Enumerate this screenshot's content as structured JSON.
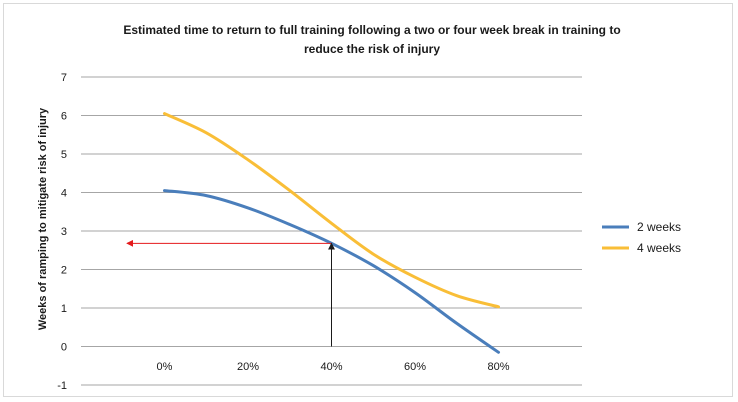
{
  "chart_data": {
    "type": "line",
    "title_lines": [
      "Estimated time to return to full training following a two or four week break in training to",
      "reduce the risk of injury"
    ],
    "xlabel": "",
    "ylabel": "Weeks of ramping to mitigate risk of injury",
    "x": [
      0,
      20,
      40,
      60,
      80
    ],
    "x_tick_labels": [
      "0%",
      "20%",
      "40%",
      "60%",
      "80%"
    ],
    "ylim": [
      -1,
      7
    ],
    "y_ticks": [
      -1,
      0,
      1,
      2,
      3,
      4,
      5,
      6,
      7
    ],
    "grid": true,
    "legend_position": "right",
    "series": [
      {
        "name": "2 weeks",
        "color": "#4a7ebb",
        "points": [
          [
            0,
            4.05
          ],
          [
            10,
            3.92
          ],
          [
            20,
            3.6
          ],
          [
            30,
            3.17
          ],
          [
            40,
            2.68
          ],
          [
            50,
            2.1
          ],
          [
            60,
            1.4
          ],
          [
            70,
            0.6
          ],
          [
            80,
            -0.15
          ]
        ]
      },
      {
        "name": "4 weeks",
        "color": "#f9be37",
        "points": [
          [
            0,
            6.05
          ],
          [
            10,
            5.55
          ],
          [
            20,
            4.85
          ],
          [
            30,
            4.05
          ],
          [
            40,
            3.2
          ],
          [
            50,
            2.4
          ],
          [
            60,
            1.8
          ],
          [
            70,
            1.32
          ],
          [
            80,
            1.03
          ]
        ]
      }
    ],
    "annotations": [
      {
        "type": "arrow-horizontal",
        "color": "#e41a1c",
        "from": [
          40,
          2.68
        ],
        "to": [
          -9,
          2.68
        ]
      },
      {
        "type": "arrow-vertical",
        "color": "#1a1a1a",
        "from": [
          40,
          0
        ],
        "to": [
          40,
          2.68
        ]
      }
    ]
  }
}
